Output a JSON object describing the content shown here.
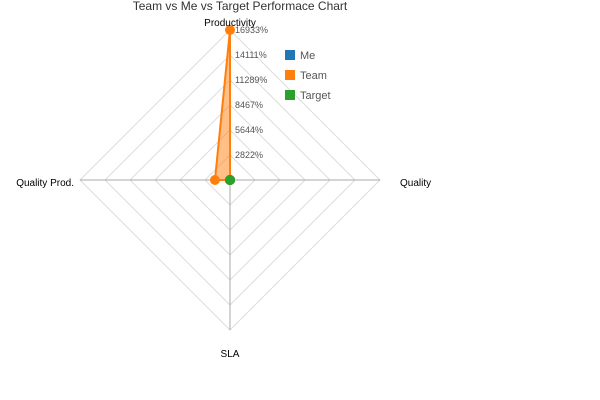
{
  "chart_data": {
    "type": "radar",
    "title": "Team vs Me vs Target Performace Chart",
    "axes": [
      "Productivity",
      "Quality",
      "SLA",
      "Quality Prod."
    ],
    "ticks": [
      "2822%",
      "5644%",
      "8467%",
      "11289%",
      "14111%",
      "16933%"
    ],
    "rmax": 16933,
    "series": [
      {
        "name": "Me",
        "color": "#1f77b4",
        "values": [
          0,
          0,
          0,
          0
        ]
      },
      {
        "name": "Team",
        "color": "#ff7f0e",
        "values": [
          16933,
          0,
          0,
          1700
        ]
      },
      {
        "name": "Target",
        "color": "#2ca02c",
        "values": [
          0,
          0,
          0,
          0
        ]
      }
    ],
    "legend_position": "top-right",
    "grid": true
  }
}
